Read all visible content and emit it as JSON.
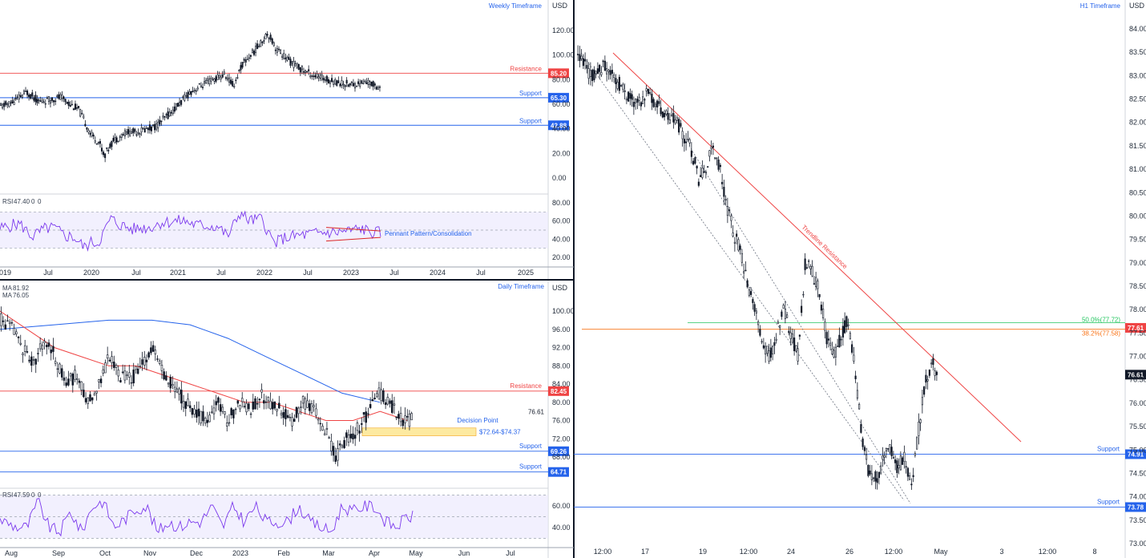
{
  "chart_data": [
    {
      "type": "candlestick",
      "title": "Weekly Timeframe",
      "currency": "USD",
      "y_ticks": [
        0.0,
        20.0,
        40.0,
        60.0,
        80.0,
        100.0,
        120.0
      ],
      "x_ticks": [
        "2019",
        "Jul",
        "2020",
        "Jul",
        "2021",
        "Jul",
        "2022",
        "Jul",
        "2023",
        "Jul",
        "2024",
        "Jul",
        "2025"
      ],
      "levels": [
        {
          "label": "Resistance",
          "value": 85.2,
          "tag": "85.20",
          "color": "#ef4444"
        },
        {
          "label": "Support",
          "value": 65.3,
          "tag": "65.30",
          "color": "#2563eb"
        },
        {
          "label": "Support",
          "value": 42.88,
          "tag": "42.88",
          "color": "#2563eb"
        }
      ],
      "path": [
        [
          0,
          58
        ],
        [
          6,
          62
        ],
        [
          12,
          70
        ],
        [
          18,
          62
        ],
        [
          24,
          64
        ],
        [
          28,
          66
        ],
        [
          32,
          60
        ],
        [
          36,
          56
        ],
        [
          42,
          35
        ],
        [
          46,
          28
        ],
        [
          48,
          18
        ],
        [
          52,
          30
        ],
        [
          58,
          37
        ],
        [
          64,
          38
        ],
        [
          72,
          42
        ],
        [
          80,
          55
        ],
        [
          88,
          70
        ],
        [
          96,
          78
        ],
        [
          104,
          84
        ],
        [
          108,
          75
        ],
        [
          112,
          92
        ],
        [
          116,
          100
        ],
        [
          120,
          108
        ],
        [
          124,
          118
        ],
        [
          128,
          105
        ],
        [
          134,
          95
        ],
        [
          140,
          88
        ],
        [
          146,
          83
        ],
        [
          152,
          80
        ],
        [
          158,
          77
        ],
        [
          164,
          76
        ],
        [
          170,
          78
        ],
        [
          176,
          74
        ]
      ],
      "rsi": {
        "label": "RSI",
        "value": "47.40",
        "extra": [
          "0",
          "0"
        ],
        "ticks": [
          20.0,
          40.0,
          60.0,
          80.0
        ],
        "annotation": "Pennant Pattern/Consolidation"
      }
    },
    {
      "type": "candlestick",
      "title": "Daily Timeframe",
      "currency": "USD",
      "y_ticks": [
        68.0,
        72.0,
        76.0,
        80.0,
        84.0,
        88.0,
        92.0,
        96.0,
        100.0
      ],
      "x_ticks": [
        "Aug",
        "Sep",
        "Oct",
        "Nov",
        "Dec",
        "2023",
        "Feb",
        "Mar",
        "Apr",
        "May",
        "Jun",
        "Jul"
      ],
      "ma": [
        {
          "label": "MA",
          "value": "81.92",
          "color": "#2563eb"
        },
        {
          "label": "MA",
          "value": "76.05",
          "color": "#ef4444"
        }
      ],
      "levels": [
        {
          "label": "Resistance",
          "value": 82.45,
          "tag": "82.45",
          "color": "#ef4444"
        },
        {
          "label": "Support",
          "value": 69.26,
          "tag": "69.26",
          "color": "#2563eb"
        },
        {
          "label": "Support",
          "value": 64.71,
          "tag": "64.71",
          "color": "#2563eb"
        }
      ],
      "zone": {
        "label": "$72.64-$74.37",
        "low": 72.64,
        "high": 74.37,
        "annotation": "Decision Point",
        "price_label": "76.61"
      },
      "path": [
        [
          0,
          98
        ],
        [
          4,
          96
        ],
        [
          8,
          92
        ],
        [
          12,
          88
        ],
        [
          16,
          94
        ],
        [
          20,
          90
        ],
        [
          24,
          84
        ],
        [
          28,
          86
        ],
        [
          32,
          80
        ],
        [
          36,
          84
        ],
        [
          40,
          90
        ],
        [
          44,
          86
        ],
        [
          48,
          85
        ],
        [
          52,
          88
        ],
        [
          56,
          92
        ],
        [
          60,
          86
        ],
        [
          64,
          84
        ],
        [
          68,
          80
        ],
        [
          72,
          78
        ],
        [
          76,
          76
        ],
        [
          80,
          80
        ],
        [
          84,
          76
        ],
        [
          88,
          80
        ],
        [
          92,
          78
        ],
        [
          96,
          82
        ],
        [
          100,
          80
        ],
        [
          104,
          78
        ],
        [
          108,
          76
        ],
        [
          112,
          80
        ],
        [
          116,
          78
        ],
        [
          120,
          74
        ],
        [
          124,
          68
        ],
        [
          128,
          72
        ],
        [
          132,
          74
        ],
        [
          136,
          78
        ],
        [
          140,
          82
        ],
        [
          144,
          80
        ],
        [
          148,
          76
        ],
        [
          152,
          76
        ]
      ],
      "ma_long": [
        [
          0,
          96
        ],
        [
          20,
          97
        ],
        [
          40,
          98
        ],
        [
          56,
          98
        ],
        [
          70,
          97
        ],
        [
          84,
          94
        ],
        [
          98,
          90
        ],
        [
          112,
          86
        ],
        [
          126,
          82
        ],
        [
          140,
          80
        ]
      ],
      "ma_short": [
        [
          0,
          100
        ],
        [
          10,
          96
        ],
        [
          20,
          92
        ],
        [
          30,
          90
        ],
        [
          40,
          88
        ],
        [
          50,
          88
        ],
        [
          60,
          86
        ],
        [
          70,
          84
        ],
        [
          80,
          82
        ],
        [
          90,
          80
        ],
        [
          100,
          80
        ],
        [
          110,
          78
        ],
        [
          120,
          76
        ],
        [
          130,
          76
        ],
        [
          140,
          78
        ],
        [
          150,
          76
        ]
      ],
      "rsi": {
        "label": "RSI",
        "value": "47.59",
        "extra": [
          "0",
          "0"
        ],
        "ticks": [
          40.0,
          60.0
        ]
      }
    },
    {
      "type": "candlestick",
      "title": "H1 Timeframe",
      "currency": "USD",
      "y_ticks": [
        73.0,
        73.5,
        74.0,
        74.5,
        75.0,
        75.5,
        76.0,
        76.5,
        77.0,
        77.5,
        78.0,
        78.5,
        79.0,
        79.5,
        80.0,
        80.5,
        81.0,
        81.5,
        82.0,
        82.5,
        83.0,
        83.5,
        84.0
      ],
      "x_ticks": [
        "12:00",
        "17",
        "19",
        "12:00",
        "24",
        "26",
        "12:00",
        "May",
        "3",
        "12:00",
        "8"
      ],
      "levels": [
        {
          "label": "Support",
          "value": 74.91,
          "tag": "74.91",
          "color": "#2563eb"
        },
        {
          "label": "Support",
          "value": 73.78,
          "tag": "73.78",
          "color": "#2563eb"
        }
      ],
      "fib": [
        {
          "label": "50.0%(77.72)",
          "value": 77.72,
          "color": "#22c55e"
        },
        {
          "label": "38.2%(77.58)",
          "value": 77.58,
          "color": "#f97316"
        }
      ],
      "fib_tag": "77.61",
      "price_tag": "76.61",
      "trendline_label": "Trendline Resistance",
      "path": [
        [
          0,
          83.4
        ],
        [
          4,
          83.0
        ],
        [
          8,
          83.2
        ],
        [
          12,
          82.8
        ],
        [
          16,
          82.4
        ],
        [
          20,
          82.6
        ],
        [
          24,
          82.2
        ],
        [
          28,
          82.0
        ],
        [
          32,
          81.4
        ],
        [
          34,
          80.8
        ],
        [
          36,
          81.0
        ],
        [
          38,
          81.5
        ],
        [
          40,
          81.0
        ],
        [
          42,
          80.2
        ],
        [
          44,
          79.6
        ],
        [
          46,
          79.2
        ],
        [
          48,
          78.4
        ],
        [
          50,
          78.0
        ],
        [
          52,
          77.2
        ],
        [
          54,
          77.0
        ],
        [
          56,
          77.5
        ],
        [
          58,
          78.0
        ],
        [
          60,
          77.5
        ],
        [
          62,
          77.0
        ],
        [
          64,
          79.0
        ],
        [
          66,
          78.8
        ],
        [
          68,
          78.4
        ],
        [
          70,
          77.4
        ],
        [
          72,
          77.0
        ],
        [
          74,
          77.4
        ],
        [
          76,
          77.8
        ],
        [
          78,
          76.8
        ],
        [
          80,
          75.2
        ],
        [
          82,
          74.5
        ],
        [
          84,
          74.4
        ],
        [
          86,
          74.8
        ],
        [
          88,
          75.0
        ],
        [
          90,
          74.6
        ],
        [
          92,
          74.9
        ],
        [
          94,
          74.2
        ],
        [
          96,
          75.5
        ],
        [
          98,
          76.5
        ],
        [
          100,
          76.8
        ],
        [
          101,
          76.6
        ]
      ]
    }
  ]
}
